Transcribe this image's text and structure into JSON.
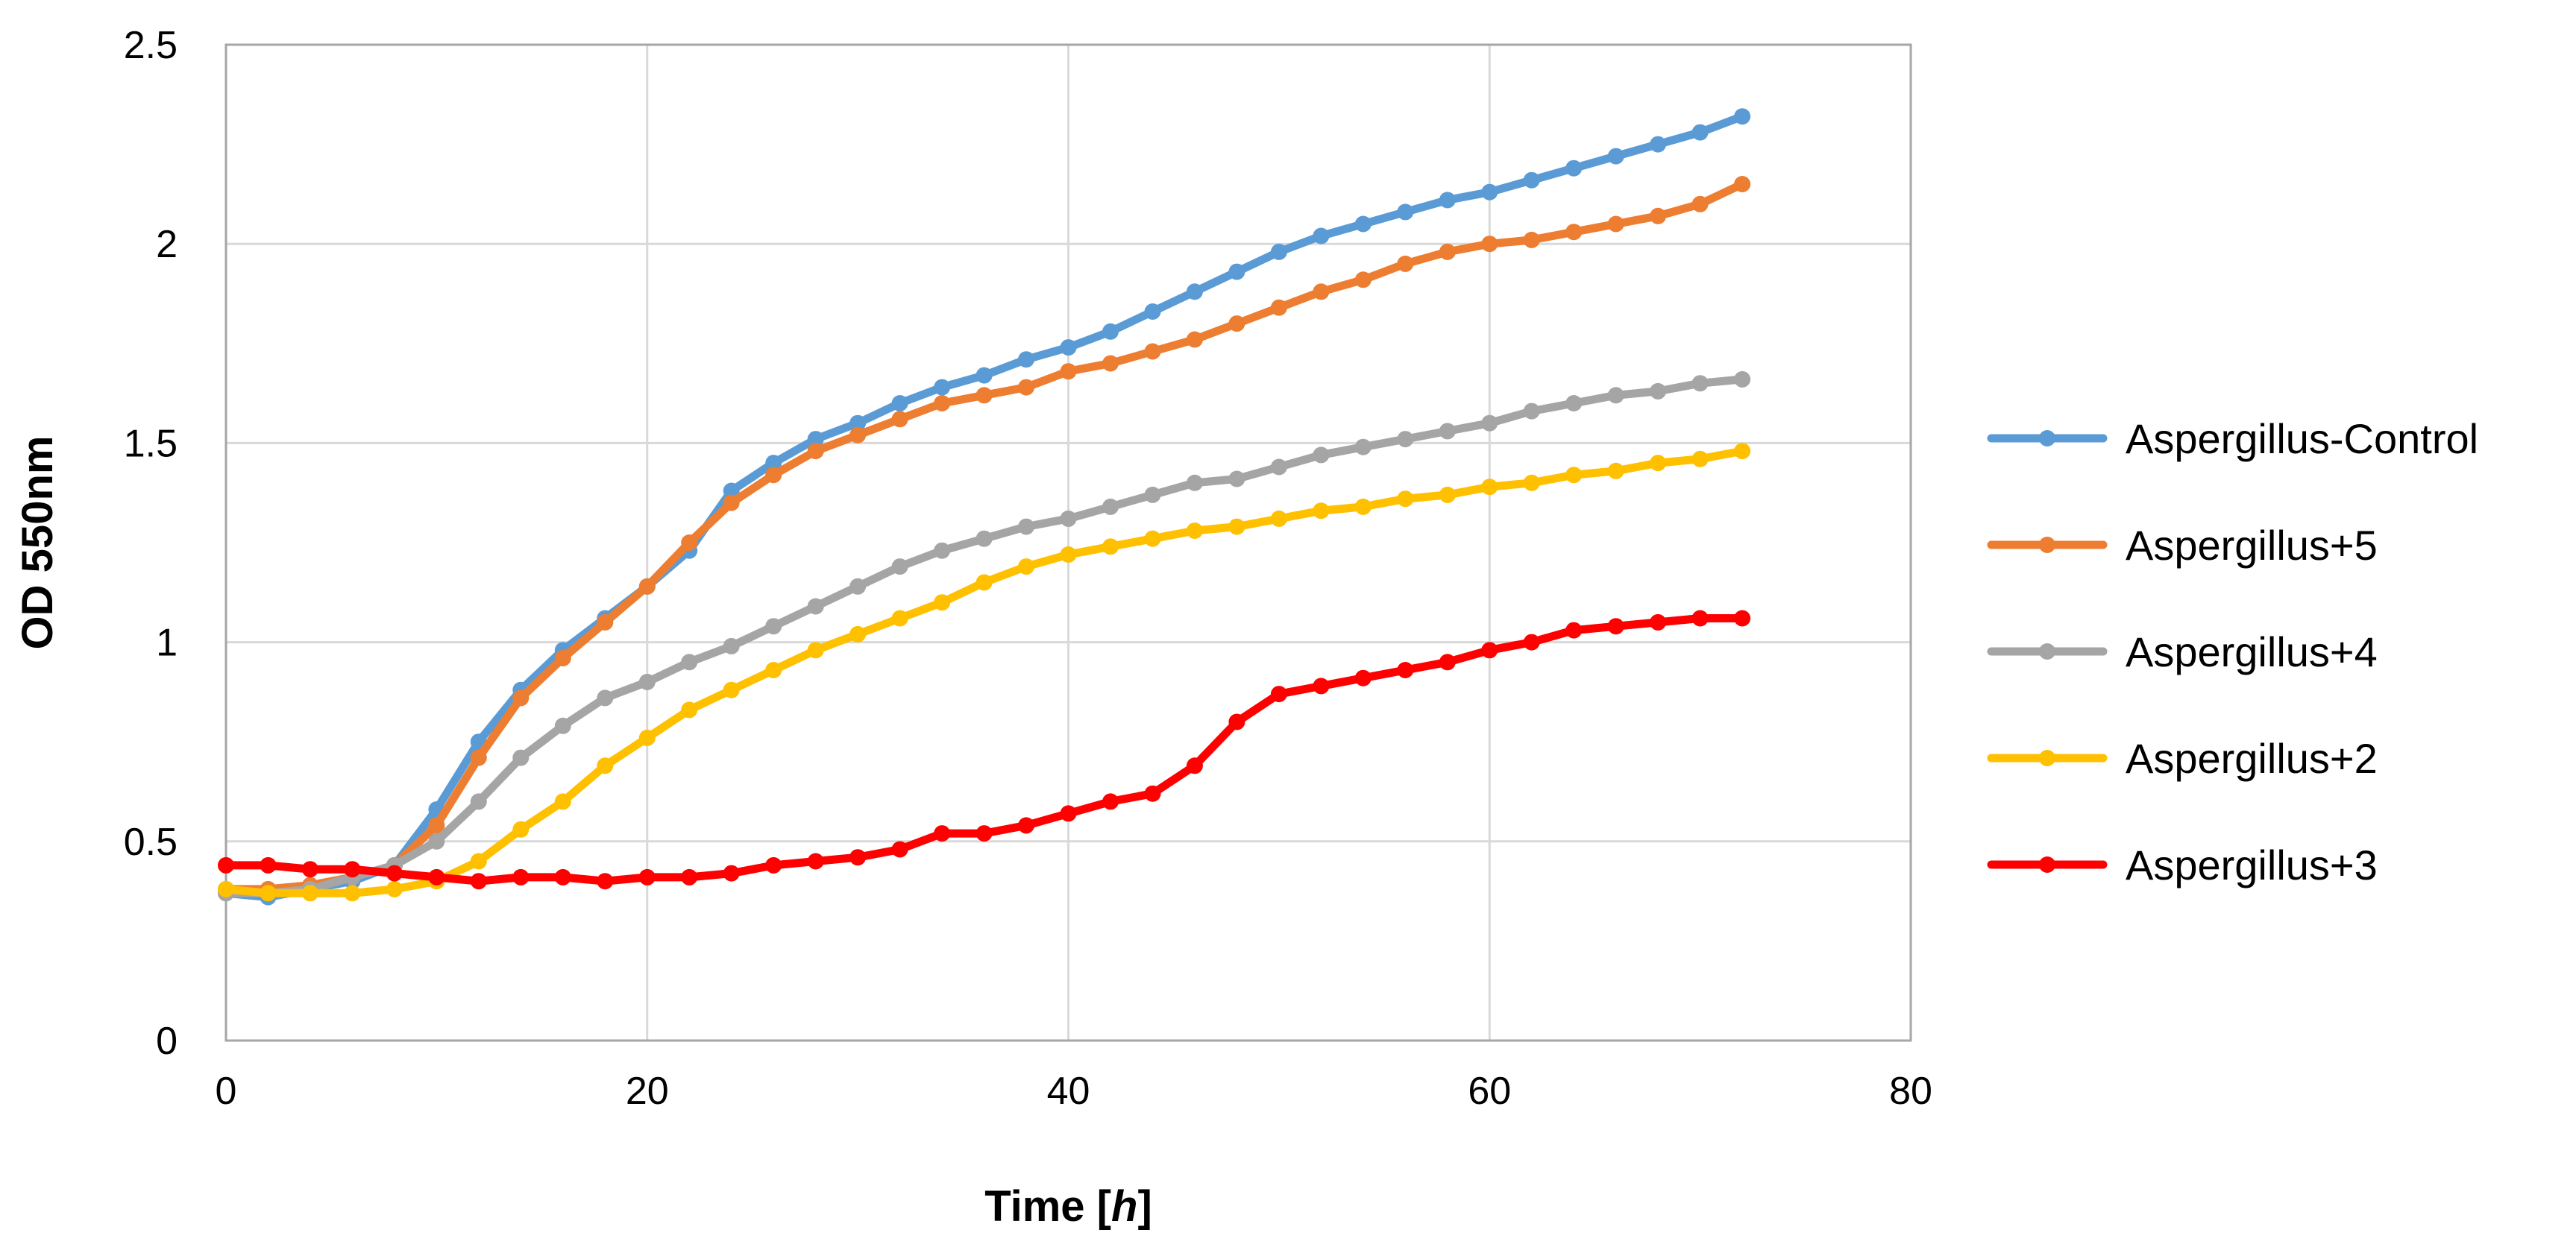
{
  "chart_data": {
    "type": "line",
    "title": "",
    "xlabel": "Time [",
    "xlabel_italic": "h",
    "xlabel_close": "]",
    "ylabel": "OD 550nm",
    "xlim": [
      0,
      80
    ],
    "ylim": [
      0,
      2.5
    ],
    "x_ticks": [
      0,
      20,
      40,
      60,
      80
    ],
    "x_tick_labels": [
      "0",
      "20",
      "40",
      "60",
      "80"
    ],
    "y_ticks": [
      0,
      0.5,
      1,
      1.5,
      2,
      2.5
    ],
    "y_tick_labels": [
      "0",
      "0.5",
      "1",
      "1.5",
      "2",
      "2.5"
    ],
    "grid": true,
    "legend_position": "right",
    "series": [
      {
        "name": "Aspergillus-Control",
        "color": "#5B9BD5",
        "points": [
          [
            0,
            0.37
          ],
          [
            2,
            0.36
          ],
          [
            4,
            0.38
          ],
          [
            6,
            0.4
          ],
          [
            8,
            0.44
          ],
          [
            10,
            0.58
          ],
          [
            12,
            0.75
          ],
          [
            14,
            0.88
          ],
          [
            16,
            0.98
          ],
          [
            18,
            1.06
          ],
          [
            20,
            1.14
          ],
          [
            22,
            1.23
          ],
          [
            24,
            1.38
          ],
          [
            26,
            1.45
          ],
          [
            28,
            1.51
          ],
          [
            30,
            1.55
          ],
          [
            32,
            1.6
          ],
          [
            34,
            1.64
          ],
          [
            36,
            1.67
          ],
          [
            38,
            1.71
          ],
          [
            40,
            1.74
          ],
          [
            42,
            1.78
          ],
          [
            44,
            1.83
          ],
          [
            46,
            1.88
          ],
          [
            48,
            1.93
          ],
          [
            50,
            1.98
          ],
          [
            52,
            2.02
          ],
          [
            54,
            2.05
          ],
          [
            56,
            2.08
          ],
          [
            58,
            2.11
          ],
          [
            60,
            2.13
          ],
          [
            62,
            2.16
          ],
          [
            64,
            2.19
          ],
          [
            66,
            2.22
          ],
          [
            68,
            2.25
          ],
          [
            70,
            2.28
          ],
          [
            72,
            2.32
          ]
        ]
      },
      {
        "name": "Aspergillus+5",
        "color": "#ED7D31",
        "points": [
          [
            0,
            0.38
          ],
          [
            2,
            0.38
          ],
          [
            4,
            0.39
          ],
          [
            6,
            0.41
          ],
          [
            8,
            0.44
          ],
          [
            10,
            0.54
          ],
          [
            12,
            0.71
          ],
          [
            14,
            0.86
          ],
          [
            16,
            0.96
          ],
          [
            18,
            1.05
          ],
          [
            20,
            1.14
          ],
          [
            22,
            1.25
          ],
          [
            24,
            1.35
          ],
          [
            26,
            1.42
          ],
          [
            28,
            1.48
          ],
          [
            30,
            1.52
          ],
          [
            32,
            1.56
          ],
          [
            34,
            1.6
          ],
          [
            36,
            1.62
          ],
          [
            38,
            1.64
          ],
          [
            40,
            1.68
          ],
          [
            42,
            1.7
          ],
          [
            44,
            1.73
          ],
          [
            46,
            1.76
          ],
          [
            48,
            1.8
          ],
          [
            50,
            1.84
          ],
          [
            52,
            1.88
          ],
          [
            54,
            1.91
          ],
          [
            56,
            1.95
          ],
          [
            58,
            1.98
          ],
          [
            60,
            2.0
          ],
          [
            62,
            2.01
          ],
          [
            64,
            2.03
          ],
          [
            66,
            2.05
          ],
          [
            68,
            2.07
          ],
          [
            70,
            2.1
          ],
          [
            72,
            2.15
          ]
        ]
      },
      {
        "name": "Aspergillus+4",
        "color": "#A5A5A5",
        "points": [
          [
            0,
            0.37
          ],
          [
            2,
            0.37
          ],
          [
            4,
            0.38
          ],
          [
            6,
            0.41
          ],
          [
            8,
            0.44
          ],
          [
            10,
            0.5
          ],
          [
            12,
            0.6
          ],
          [
            14,
            0.71
          ],
          [
            16,
            0.79
          ],
          [
            18,
            0.86
          ],
          [
            20,
            0.9
          ],
          [
            22,
            0.95
          ],
          [
            24,
            0.99
          ],
          [
            26,
            1.04
          ],
          [
            28,
            1.09
          ],
          [
            30,
            1.14
          ],
          [
            32,
            1.19
          ],
          [
            34,
            1.23
          ],
          [
            36,
            1.26
          ],
          [
            38,
            1.29
          ],
          [
            40,
            1.31
          ],
          [
            42,
            1.34
          ],
          [
            44,
            1.37
          ],
          [
            46,
            1.4
          ],
          [
            48,
            1.41
          ],
          [
            50,
            1.44
          ],
          [
            52,
            1.47
          ],
          [
            54,
            1.49
          ],
          [
            56,
            1.51
          ],
          [
            58,
            1.53
          ],
          [
            60,
            1.55
          ],
          [
            62,
            1.58
          ],
          [
            64,
            1.6
          ],
          [
            66,
            1.62
          ],
          [
            68,
            1.63
          ],
          [
            70,
            1.65
          ],
          [
            72,
            1.66
          ]
        ]
      },
      {
        "name": "Aspergillus+2",
        "color": "#FFC000",
        "points": [
          [
            0,
            0.38
          ],
          [
            2,
            0.37
          ],
          [
            4,
            0.37
          ],
          [
            6,
            0.37
          ],
          [
            8,
            0.38
          ],
          [
            10,
            0.4
          ],
          [
            12,
            0.45
          ],
          [
            14,
            0.53
          ],
          [
            16,
            0.6
          ],
          [
            18,
            0.69
          ],
          [
            20,
            0.76
          ],
          [
            22,
            0.83
          ],
          [
            24,
            0.88
          ],
          [
            26,
            0.93
          ],
          [
            28,
            0.98
          ],
          [
            30,
            1.02
          ],
          [
            32,
            1.06
          ],
          [
            34,
            1.1
          ],
          [
            36,
            1.15
          ],
          [
            38,
            1.19
          ],
          [
            40,
            1.22
          ],
          [
            42,
            1.24
          ],
          [
            44,
            1.26
          ],
          [
            46,
            1.28
          ],
          [
            48,
            1.29
          ],
          [
            50,
            1.31
          ],
          [
            52,
            1.33
          ],
          [
            54,
            1.34
          ],
          [
            56,
            1.36
          ],
          [
            58,
            1.37
          ],
          [
            60,
            1.39
          ],
          [
            62,
            1.4
          ],
          [
            64,
            1.42
          ],
          [
            66,
            1.43
          ],
          [
            68,
            1.45
          ],
          [
            70,
            1.46
          ],
          [
            72,
            1.48
          ]
        ]
      },
      {
        "name": "Aspergillus+3",
        "color": "#FF0000",
        "points": [
          [
            0,
            0.44
          ],
          [
            2,
            0.44
          ],
          [
            4,
            0.43
          ],
          [
            6,
            0.43
          ],
          [
            8,
            0.42
          ],
          [
            10,
            0.41
          ],
          [
            12,
            0.4
          ],
          [
            14,
            0.41
          ],
          [
            16,
            0.41
          ],
          [
            18,
            0.4
          ],
          [
            20,
            0.41
          ],
          [
            22,
            0.41
          ],
          [
            24,
            0.42
          ],
          [
            26,
            0.44
          ],
          [
            28,
            0.45
          ],
          [
            30,
            0.46
          ],
          [
            32,
            0.48
          ],
          [
            34,
            0.52
          ],
          [
            36,
            0.52
          ],
          [
            38,
            0.54
          ],
          [
            40,
            0.57
          ],
          [
            42,
            0.6
          ],
          [
            44,
            0.62
          ],
          [
            46,
            0.69
          ],
          [
            48,
            0.8
          ],
          [
            50,
            0.87
          ],
          [
            52,
            0.89
          ],
          [
            54,
            0.91
          ],
          [
            56,
            0.93
          ],
          [
            58,
            0.95
          ],
          [
            60,
            0.98
          ],
          [
            62,
            1.0
          ],
          [
            64,
            1.03
          ],
          [
            66,
            1.04
          ],
          [
            68,
            1.05
          ],
          [
            70,
            1.06
          ],
          [
            72,
            1.06
          ]
        ]
      }
    ]
  }
}
